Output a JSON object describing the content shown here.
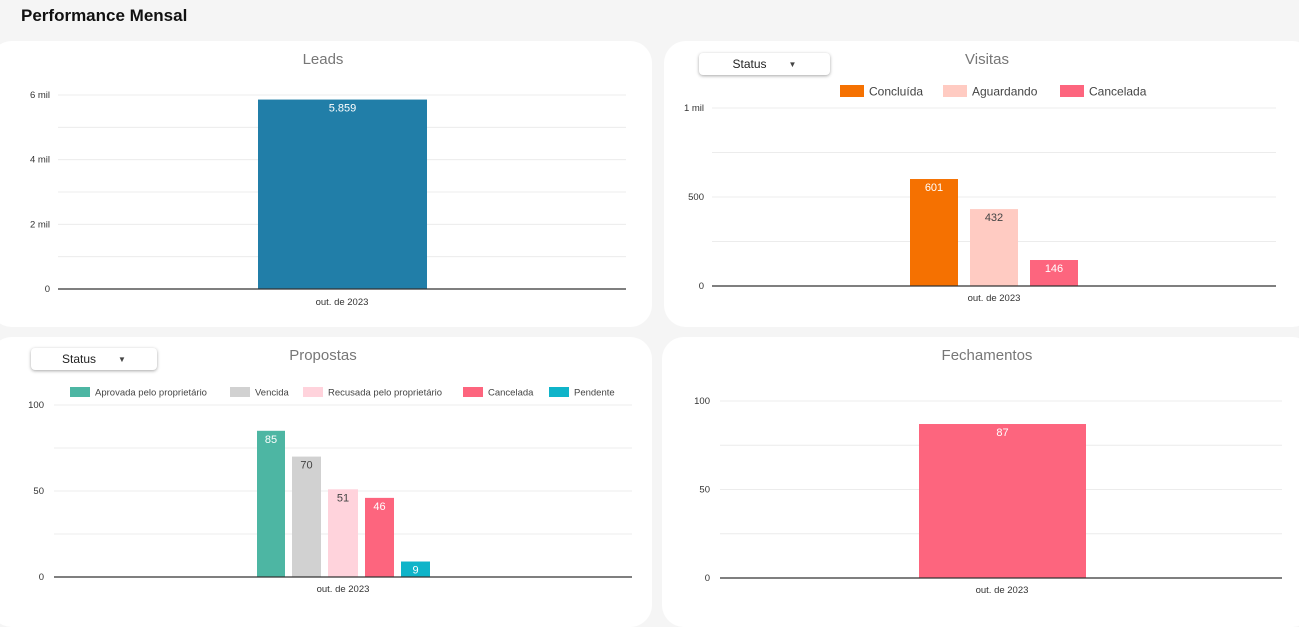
{
  "page": {
    "title": "Performance Mensal"
  },
  "colors": {
    "leads_bar": "#217ea8",
    "concluida": "#f57101",
    "aguardando": "#ffcbc2",
    "cancelada": "#fd657e",
    "aprovada": "#4db6a3",
    "vencida": "#d1d1d1",
    "recusada": "#ffd3dc",
    "pendente": "#0fb4c9",
    "fechamentos_bar": "#fd657e",
    "grid": "#ececec",
    "axis": "#333333"
  },
  "filters": {
    "visitas_status_label": "Status",
    "propostas_status_label": "Status"
  },
  "chart_data": [
    {
      "id": "leads",
      "type": "bar",
      "title": "Leads",
      "categories": [
        "out. de 2023"
      ],
      "series": [
        {
          "name": "Leads",
          "values": [
            5859
          ],
          "labels": [
            "5.859"
          ],
          "color": "leads_bar"
        }
      ],
      "ylim": [
        0,
        6000
      ],
      "yticks": [
        0,
        2000,
        4000,
        6000
      ],
      "ytick_labels": [
        "0",
        "2 mil",
        "4 mil",
        "6 mil"
      ],
      "legend": false
    },
    {
      "id": "visitas",
      "type": "bar",
      "title": "Visitas",
      "categories": [
        "out. de 2023"
      ],
      "series": [
        {
          "name": "Concluída",
          "values": [
            601
          ],
          "labels": [
            "601"
          ],
          "color": "concluida",
          "label_color": "#ffffff"
        },
        {
          "name": "Aguardando",
          "values": [
            432
          ],
          "labels": [
            "432"
          ],
          "color": "aguardando",
          "label_color": "#444444"
        },
        {
          "name": "Cancelada",
          "values": [
            146
          ],
          "labels": [
            "146"
          ],
          "color": "cancelada",
          "label_color": "#ffffff"
        }
      ],
      "ylim": [
        0,
        1000
      ],
      "yticks": [
        0,
        500,
        1000
      ],
      "ytick_labels": [
        "0",
        "500",
        "1 mil"
      ],
      "legend": true,
      "legend_position": "top"
    },
    {
      "id": "propostas",
      "type": "bar",
      "title": "Propostas",
      "categories": [
        "out. de 2023"
      ],
      "series": [
        {
          "name": "Aprovada pelo proprietário",
          "values": [
            85
          ],
          "labels": [
            "85"
          ],
          "color": "aprovada",
          "label_color": "#ffffff"
        },
        {
          "name": "Vencida",
          "values": [
            70
          ],
          "labels": [
            "70"
          ],
          "color": "vencida",
          "label_color": "#444444"
        },
        {
          "name": "Recusada pelo proprietário",
          "values": [
            51
          ],
          "labels": [
            "51"
          ],
          "color": "recusada",
          "label_color": "#444444"
        },
        {
          "name": "Cancelada",
          "values": [
            46
          ],
          "labels": [
            "46"
          ],
          "color": "cancelada",
          "label_color": "#ffffff"
        },
        {
          "name": "Pendente",
          "values": [
            9
          ],
          "labels": [
            "9"
          ],
          "color": "pendente",
          "label_color": "#ffffff"
        }
      ],
      "ylim": [
        0,
        100
      ],
      "yticks": [
        0,
        50,
        100
      ],
      "ytick_labels": [
        "0",
        "50",
        "100"
      ],
      "legend": true,
      "legend_position": "top"
    },
    {
      "id": "fechamentos",
      "type": "bar",
      "title": "Fechamentos",
      "categories": [
        "out. de 2023"
      ],
      "series": [
        {
          "name": "Fechamentos",
          "values": [
            87
          ],
          "labels": [
            "87"
          ],
          "color": "fechamentos_bar",
          "label_color": "#ffffff"
        }
      ],
      "ylim": [
        0,
        100
      ],
      "yticks": [
        0,
        50,
        100
      ],
      "ytick_labels": [
        "0",
        "50",
        "100"
      ],
      "legend": false
    }
  ]
}
